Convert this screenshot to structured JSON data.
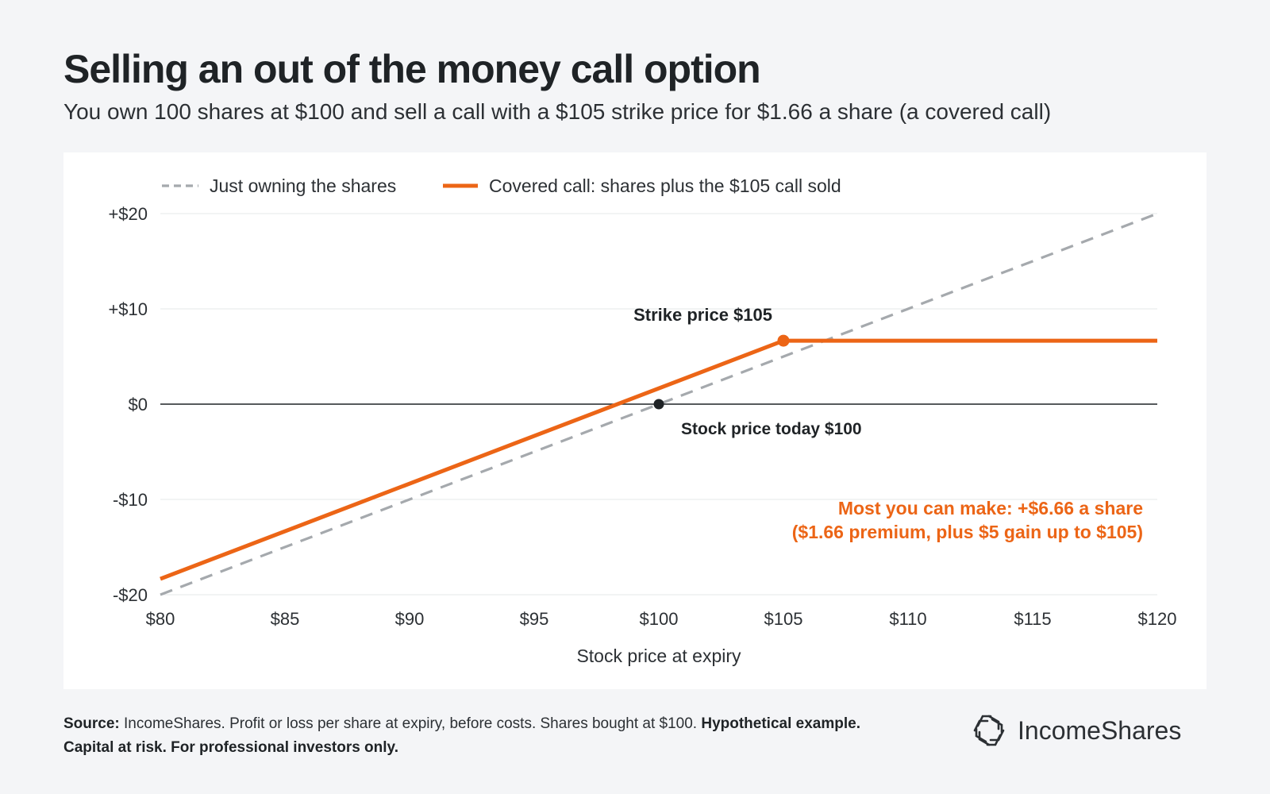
{
  "title": "Selling an out of the money call option",
  "subtitle": "You own 100 shares at $100 and sell a call with a $105 strike price for $1.66 a share (a covered call)",
  "colors": {
    "accent": "#ec6516",
    "shares": "#a5a9ad",
    "text": "#1f2326",
    "zero_line": "#1f2326"
  },
  "chart_data": {
    "type": "line",
    "xlabel": "Stock price at expiry",
    "ylabel": "",
    "xlim": [
      80,
      120
    ],
    "ylim": [
      -20,
      20
    ],
    "x_ticks": [
      80,
      85,
      90,
      95,
      100,
      105,
      110,
      115,
      120
    ],
    "x_tick_labels": [
      "$80",
      "$85",
      "$90",
      "$95",
      "$100",
      "$105",
      "$110",
      "$115",
      "$120"
    ],
    "y_ticks": [
      -20,
      -10,
      0,
      10,
      20
    ],
    "y_tick_labels": [
      "-$20",
      "-$10",
      "$0",
      "+$10",
      "+$20"
    ],
    "grid": true,
    "legend": "top-left",
    "series": [
      {
        "name": "Just owning the shares",
        "style": "dashed",
        "color": "#a5a9ad",
        "x": [
          80,
          120
        ],
        "y": [
          -20,
          20
        ]
      },
      {
        "name": "Covered call: shares plus the $105 call sold",
        "style": "solid",
        "color": "#ec6516",
        "x": [
          80,
          105,
          120
        ],
        "y": [
          -18.34,
          6.66,
          6.66
        ]
      }
    ],
    "points": [
      {
        "x": 105,
        "y": 6.66,
        "color": "#ec6516",
        "label": "Strike price $105"
      },
      {
        "x": 100,
        "y": 0,
        "color": "#1f2326",
        "label": "Stock price today $100"
      }
    ],
    "annotation": {
      "line1": "Most you can make: +$6.66 a share",
      "line2": "($1.66 premium, plus $5 gain up to $105)"
    }
  },
  "footer": {
    "source_label": "Source:",
    "source_text": " IncomeShares. Profit or loss per share at expiry, before costs. Shares bought at $100. ",
    "disclaimer": "Hypothetical example. Capital at risk. For professional investors only."
  },
  "brand": {
    "name": "IncomeShares",
    "icon": "incomeshares-logo-icon"
  }
}
